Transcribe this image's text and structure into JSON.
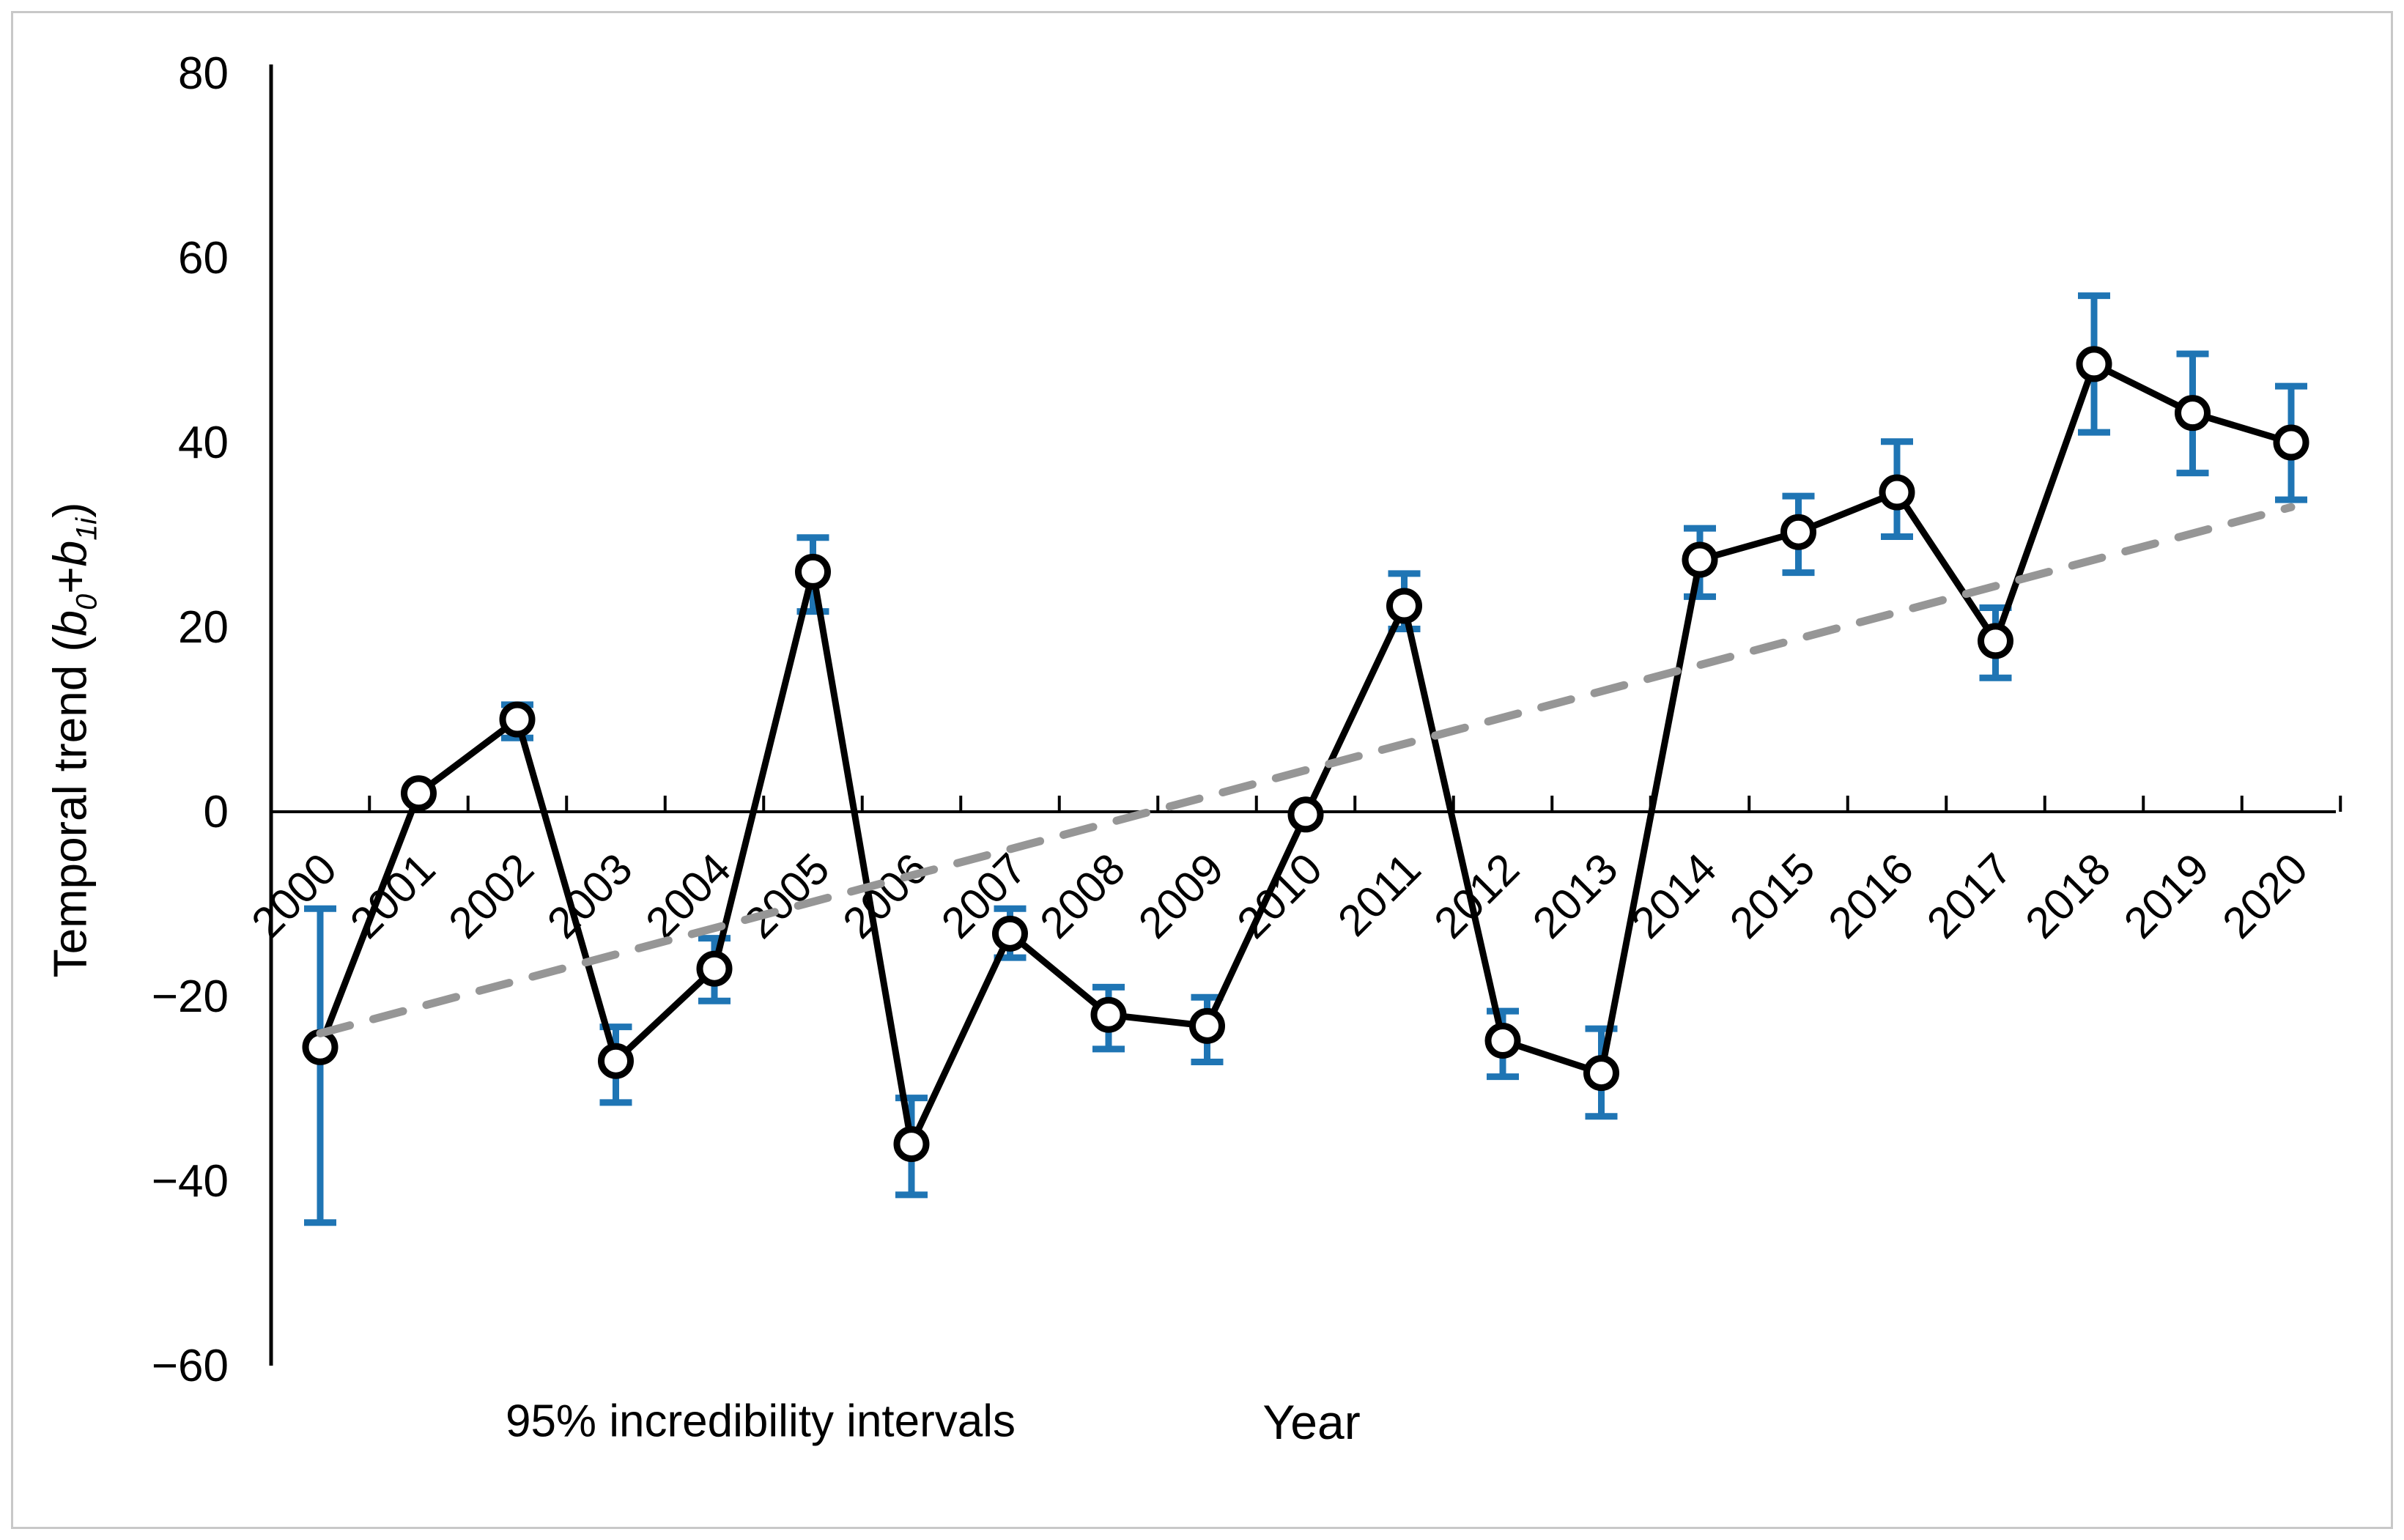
{
  "chart_data": {
    "type": "line",
    "title": "",
    "xlabel": "Year",
    "ylabel": "Temporal trend (b0+b1i)",
    "ylabel_parts": {
      "pre": "Temporal trend (",
      "var1": "b",
      "sub1": "0",
      "plus": "+",
      "var2": "b",
      "sub2": "1i",
      "close": ")"
    },
    "note": "95% incredibility intervals",
    "legend_position": "none",
    "grid": false,
    "ylim": [
      -60,
      80
    ],
    "yticks": [
      80,
      60,
      40,
      20,
      0,
      -20,
      -40,
      -60
    ],
    "years": [
      2000,
      2001,
      2002,
      2003,
      2004,
      2005,
      2006,
      2007,
      2008,
      2009,
      2010,
      2011,
      2012,
      2013,
      2014,
      2015,
      2016,
      2017,
      2018,
      2019,
      2020
    ],
    "series": [
      {
        "name": "Temporal trend (b0+b1i)",
        "marker": "open-circle",
        "line_color": "#000000",
        "marker_fill": "#ffffff",
        "values": [
          -25.5,
          2,
          10,
          -27,
          -17,
          26,
          -36,
          -13.2,
          -22,
          -23.2,
          -0.3,
          22.3,
          -24.8,
          -28.3,
          27.3,
          30.3,
          34.6,
          18.5,
          48.5,
          43.2,
          40
        ],
        "error_low": [
          -44.5,
          null,
          8,
          -31.5,
          -20.5,
          21.7,
          -41.5,
          -15.8,
          -25.7,
          -27.1,
          null,
          19.8,
          -28.7,
          -33,
          23.3,
          25.9,
          29.8,
          14.5,
          41.1,
          36.7,
          33.8
        ],
        "error_high": [
          -10.5,
          null,
          11.6,
          -23.3,
          -13.7,
          29.7,
          -31,
          -10.5,
          -19,
          -20.1,
          null,
          25.8,
          -21.6,
          -23.5,
          30.7,
          34.2,
          40.1,
          22.1,
          55.9,
          49.6,
          46.1
        ]
      }
    ],
    "trend_line": {
      "style": "dashed",
      "color": "#969696",
      "from": {
        "year": 2000,
        "value": -24
      },
      "to": {
        "year": 2020,
        "value": 33
      }
    },
    "error_bar_color": "#1f75b4",
    "axis_color": "#000000",
    "frame_color": "#c8c8c8"
  }
}
